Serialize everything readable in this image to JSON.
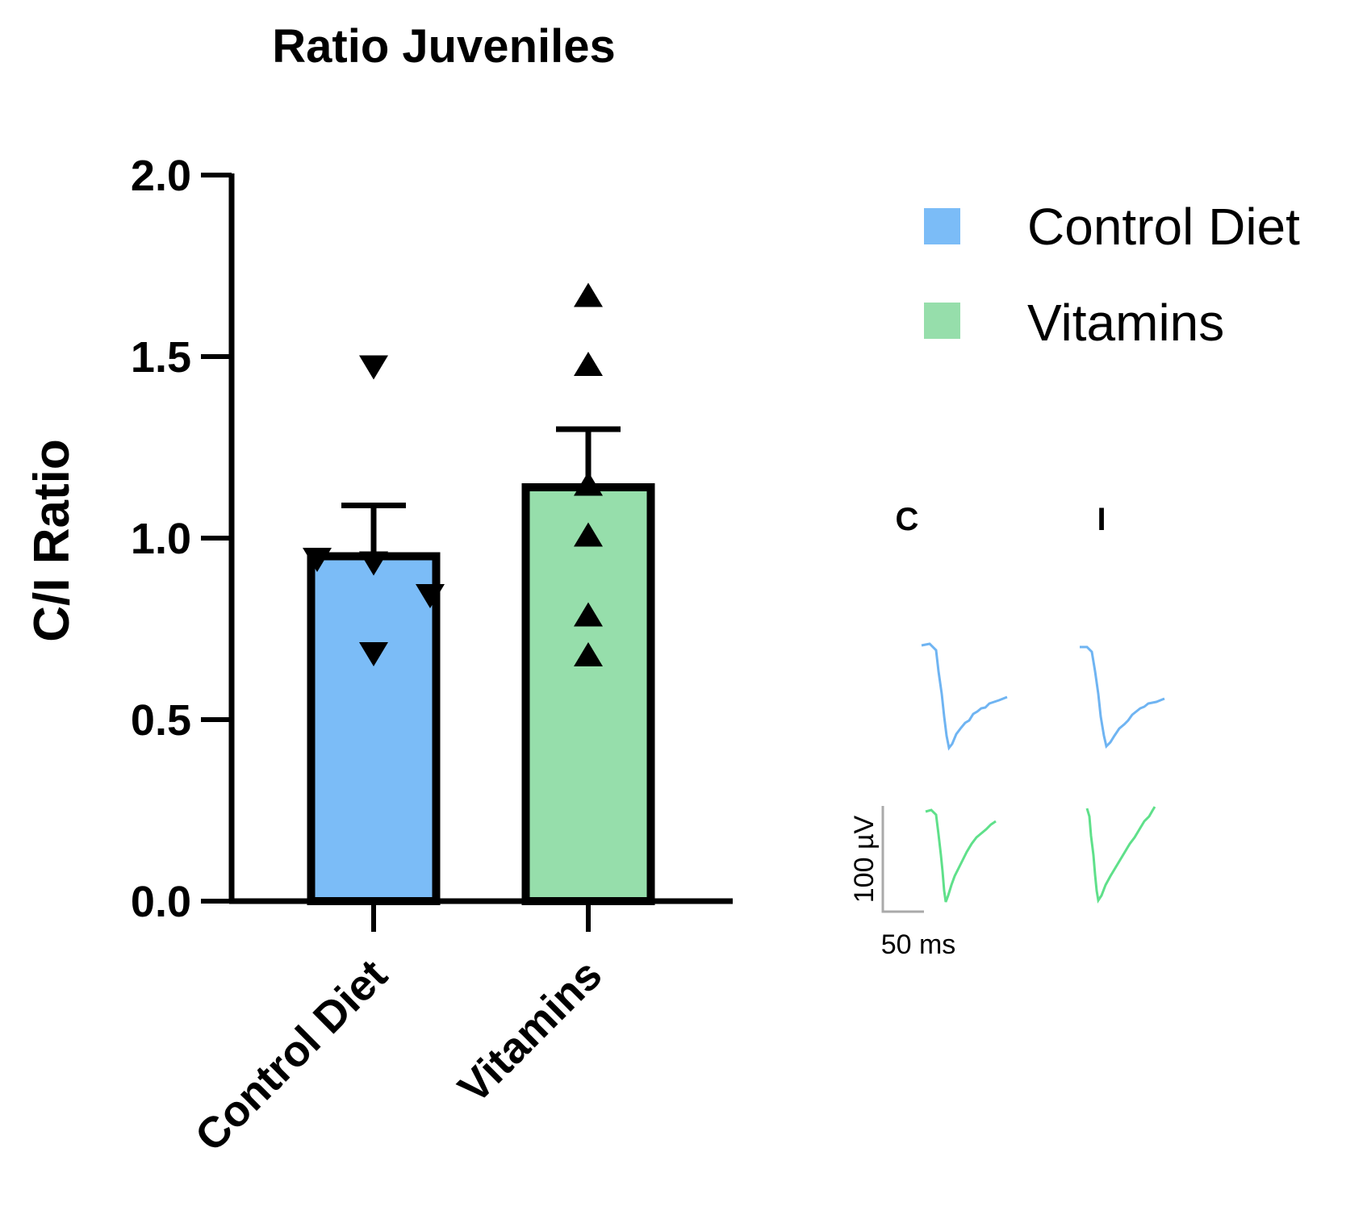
{
  "chart_data": {
    "type": "bar",
    "title": "Ratio Juveniles",
    "ylabel": "C/I Ratio",
    "xlabel": "",
    "ylim": [
      0,
      2.0
    ],
    "yticks": [
      "0.0",
      "0.5",
      "1.0",
      "1.5",
      "2.0"
    ],
    "categories": [
      "Control Diet",
      "Vitamins"
    ],
    "values": [
      0.95,
      1.14
    ],
    "errors": [
      0.14,
      0.16
    ],
    "colors": [
      "#7bbcf7",
      "#96deab"
    ],
    "points": [
      [
        1.47,
        0.94,
        0.93,
        0.84,
        0.68
      ],
      [
        1.67,
        1.48,
        1.15,
        1.01,
        0.79,
        0.68
      ]
    ],
    "markers": [
      "triangle-down",
      "triangle-up"
    ],
    "grid": false,
    "legend": {
      "position": "top-right",
      "entries": [
        {
          "label": "Control Diet",
          "color": "#7bbcf7"
        },
        {
          "label": "Vitamins",
          "color": "#96deab"
        }
      ]
    }
  },
  "traces": {
    "column_labels": [
      "C",
      "I"
    ],
    "scale_y_label": "100 µV",
    "scale_x_label": "50 ms",
    "colors": {
      "control": "#6fb4f2",
      "vitamins": "#5fe08a",
      "scale": "#aaaaaa"
    }
  }
}
